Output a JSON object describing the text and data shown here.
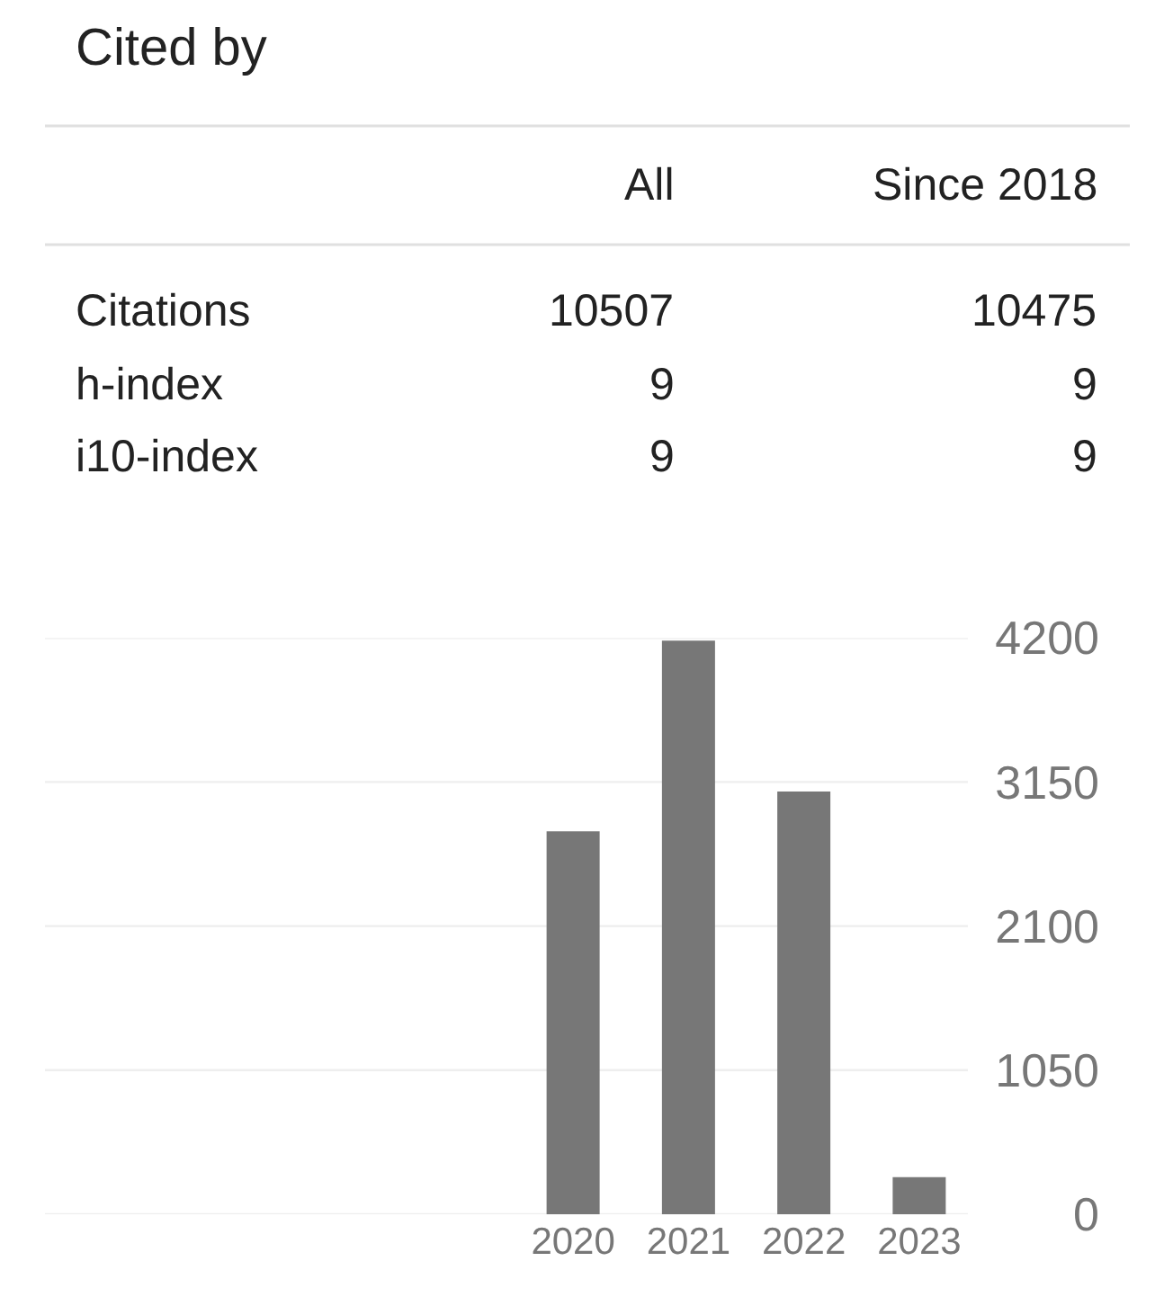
{
  "chart_data": [
    {
      "type": "other",
      "title": "Cited by",
      "categories": [
        "Citations",
        "h-index",
        "i10-index"
      ],
      "series": [
        {
          "name": "All",
          "values": [
            10507,
            9,
            9
          ]
        },
        {
          "name": "Since 2018",
          "values": [
            10475,
            9,
            9
          ]
        }
      ],
      "data_labels": true
    },
    {
      "type": "bar",
      "categories": [
        "2020",
        "2021",
        "2022",
        "2023"
      ],
      "values": [
        2790,
        4180,
        3080,
        270
      ],
      "color": "#777777",
      "ylim": [
        0,
        4200
      ],
      "yticks": [
        0,
        1050,
        2100,
        3150,
        4200
      ],
      "grid": "y"
    }
  ]
}
